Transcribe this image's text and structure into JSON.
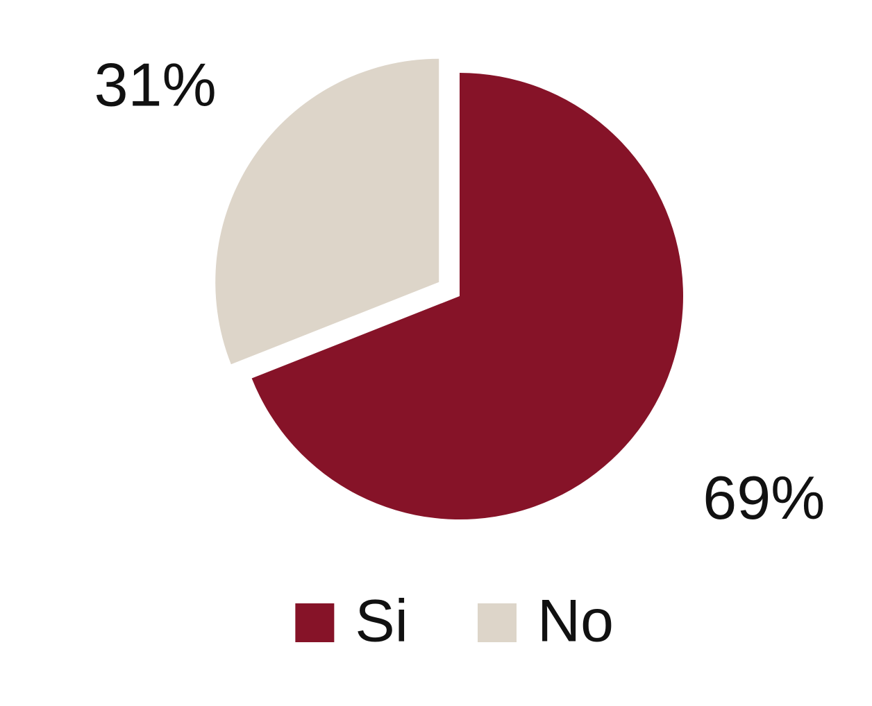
{
  "chart_data": {
    "type": "pie",
    "categories": [
      "Si",
      "No"
    ],
    "values": [
      69,
      31
    ],
    "value_labels": [
      "69%",
      "31%"
    ],
    "colors": [
      "#861328",
      "#ddd5c9"
    ],
    "legend": "bottom"
  }
}
